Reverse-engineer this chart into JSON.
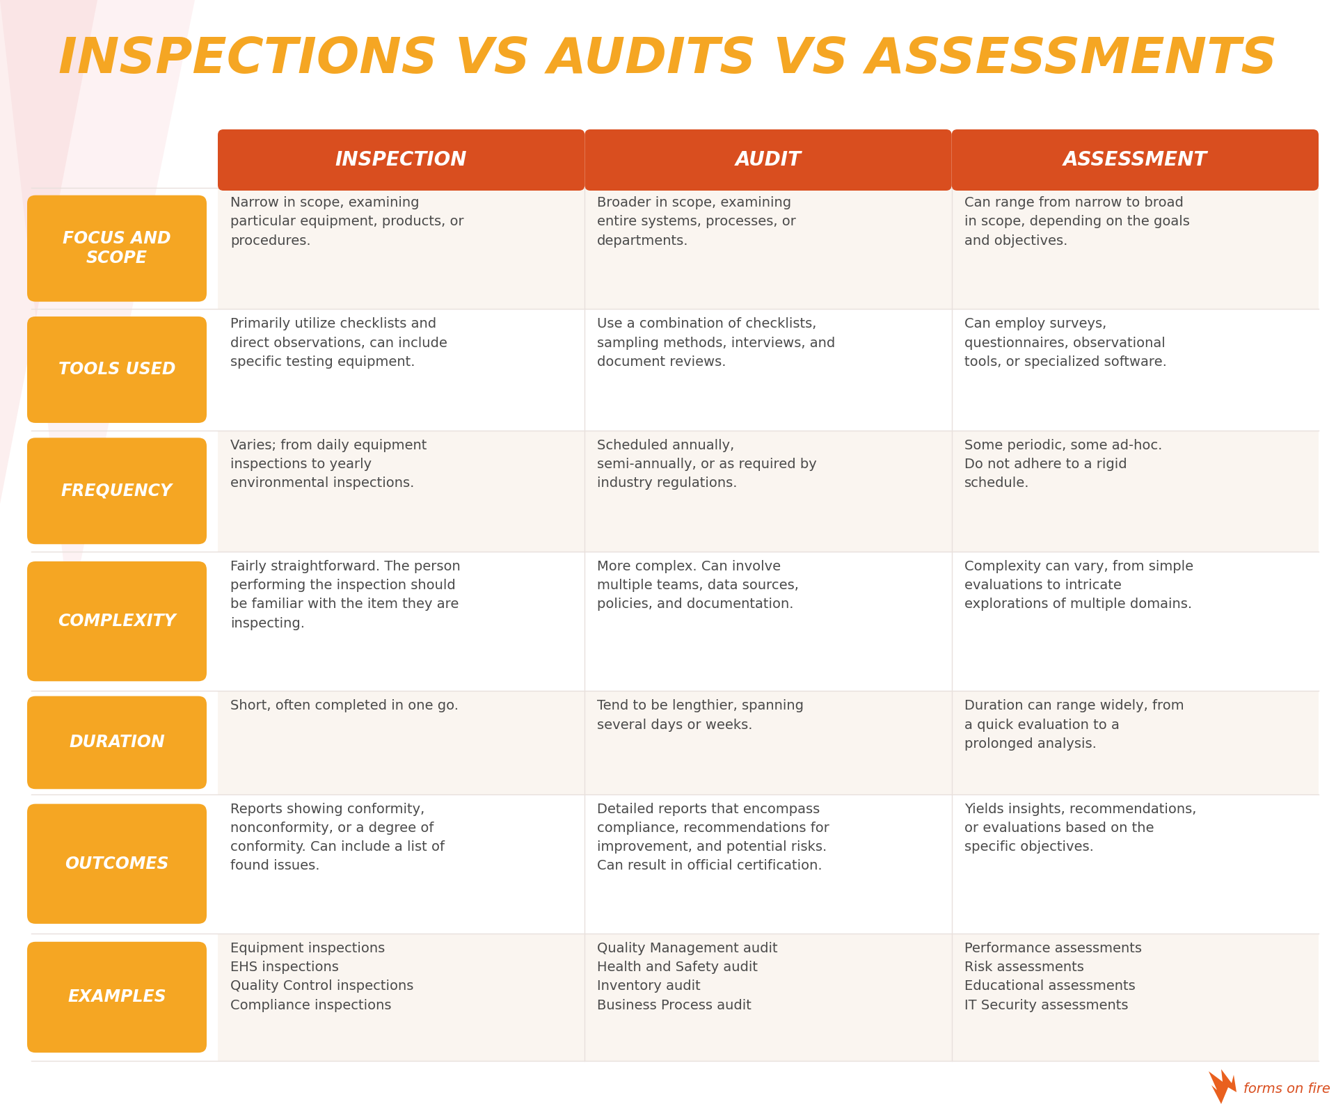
{
  "title": "INSPECTIONS VS AUDITS VS ASSESSMENTS",
  "title_color": "#F5A623",
  "bg_color": "#FFFFFF",
  "header_bg": "#D94E1F",
  "header_text_color": "#FFFFFF",
  "row_label_bg": "#F5A623",
  "row_label_text_color": "#FFFFFF",
  "body_text_color": "#4A4A4A",
  "divider_color": "#E8E0DC",
  "alt_row_color": "#FAF5F0",
  "white_row_color": "#FFFFFF",
  "columns": [
    "INSPECTION",
    "AUDIT",
    "ASSESSMENT"
  ],
  "rows": [
    {
      "label": "FOCUS AND\nSCOPE",
      "cells": [
        "Narrow in scope, examining\nparticular equipment, products, or\nprocedures.",
        "Broader in scope, examining\nentire systems, processes, or\ndepartments.",
        "Can range from narrow to broad\nin scope, depending on the goals\nand objectives."
      ]
    },
    {
      "label": "TOOLS USED",
      "cells": [
        "Primarily utilize checklists and\ndirect observations, can include\nspecific testing equipment.",
        "Use a combination of checklists,\nsampling methods, interviews, and\ndocument reviews.",
        "Can employ surveys,\nquestionnaires, observational\ntools, or specialized software."
      ]
    },
    {
      "label": "FREQUENCY",
      "cells": [
        "Varies; from daily equipment\ninspections to yearly\nenvironmental inspections.",
        "Scheduled annually,\nsemi-annually, or as required by\nindustry regulations.",
        "Some periodic, some ad-hoc.\nDo not adhere to a rigid\nschedule."
      ]
    },
    {
      "label": "COMPLEXITY",
      "cells": [
        "Fairly straightforward. The person\nperforming the inspection should\nbe familiar with the item they are\ninspecting.",
        "More complex. Can involve\nmultiple teams, data sources,\npolicies, and documentation.",
        "Complexity can vary, from simple\nevaluations to intricate\nexplorations of multiple domains."
      ]
    },
    {
      "label": "DURATION",
      "cells": [
        "Short, often completed in one go.",
        "Tend to be lengthier, spanning\nseveral days or weeks.",
        "Duration can range widely, from\na quick evaluation to a\nprolonged analysis."
      ]
    },
    {
      "label": "OUTCOMES",
      "cells": [
        "Reports showing conformity,\nnonconformity, or a degree of\nconformity. Can include a list of\nfound issues.",
        "Detailed reports that encompass\ncompliance, recommendations for\nimprovement, and potential risks.\nCan result in official certification.",
        "Yields insights, recommendations,\nor evaluations based on the\nspecific objectives."
      ]
    },
    {
      "label": "EXAMPLES",
      "cells": [
        "Equipment inspections\nEHS inspections\nQuality Control inspections\nCompliance inspections",
        "Quality Management audit\nHealth and Safety audit\nInventory audit\nBusiness Process audit",
        "Performance assessments\nRisk assessments\nEducational assessments\nIT Security assessments"
      ]
    }
  ],
  "watermark_text": "forms on fire",
  "watermark_color": "#D94E1F",
  "logo_flame_color": "#E8520A"
}
